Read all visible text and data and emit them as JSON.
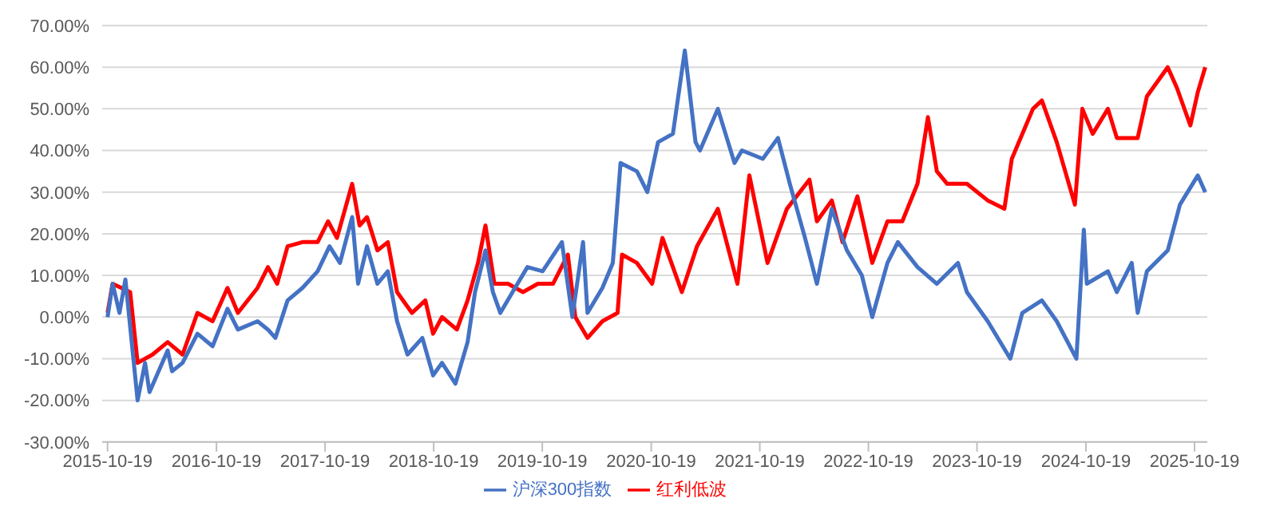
{
  "chart_data": {
    "type": "line",
    "marker": "none",
    "grid": "y",
    "legend": "bottom",
    "xlim": [
      "2015-10-01",
      "2025-12-01"
    ],
    "xticks": [
      "2015-10-19",
      "2016-10-19",
      "2017-10-19",
      "2018-10-19",
      "2019-10-19",
      "2020-10-19",
      "2021-10-19",
      "2022-10-19",
      "2023-10-19",
      "2024-10-19",
      "2025-10-19"
    ],
    "ylim": [
      -30,
      70
    ],
    "yticks": [
      {
        "value": -30,
        "label": "-30.00%"
      },
      {
        "value": -20,
        "label": "-20.00%"
      },
      {
        "value": -10,
        "label": "-10.00%"
      },
      {
        "value": 0,
        "label": "0.00%"
      },
      {
        "value": 10,
        "label": "10.00%"
      },
      {
        "value": 20,
        "label": "20.00%"
      },
      {
        "value": 30,
        "label": "30.00%"
      },
      {
        "value": 40,
        "label": "40.00%"
      },
      {
        "value": 50,
        "label": "50.00%"
      },
      {
        "value": 60,
        "label": "60.00%"
      },
      {
        "value": 70,
        "label": "70.00%"
      }
    ],
    "series": [
      {
        "name": "红利低波",
        "color": "#ff0000",
        "x": [
          "2015-10-19",
          "2015-11-05",
          "2016-01-03",
          "2016-01-28",
          "2016-03-18",
          "2016-05-08",
          "2016-06-27",
          "2016-08-16",
          "2016-10-06",
          "2016-11-25",
          "2016-12-30",
          "2017-03-06",
          "2017-04-10",
          "2017-05-11",
          "2017-06-15",
          "2017-08-04",
          "2017-09-24",
          "2017-10-29",
          "2017-11-28",
          "2018-01-18",
          "2018-02-12",
          "2018-03-09",
          "2018-04-13",
          "2018-05-18",
          "2018-06-18",
          "2018-08-07",
          "2018-09-21",
          "2018-10-17",
          "2018-11-16",
          "2019-01-05",
          "2019-02-10",
          "2019-03-17",
          "2019-04-11",
          "2019-05-11",
          "2019-06-26",
          "2019-08-15",
          "2019-10-04",
          "2019-11-24",
          "2020-01-13",
          "2020-02-07",
          "2020-03-19",
          "2020-05-08",
          "2020-06-28",
          "2020-07-13",
          "2020-09-01",
          "2020-10-22",
          "2020-11-26",
          "2021-01-30",
          "2021-03-22",
          "2021-05-31",
          "2021-08-05",
          "2021-09-14",
          "2021-11-14",
          "2022-01-18",
          "2022-04-04",
          "2022-04-29",
          "2022-06-18",
          "2022-07-24",
          "2022-09-12",
          "2022-11-01",
          "2022-12-22",
          "2023-02-10",
          "2023-04-02",
          "2023-05-07",
          "2023-06-06",
          "2023-07-11",
          "2023-09-15",
          "2023-11-24",
          "2024-01-19",
          "2024-02-13",
          "2024-04-24",
          "2024-05-24",
          "2024-07-13",
          "2024-09-12",
          "2024-10-07",
          "2024-11-11",
          "2025-01-01",
          "2025-01-31",
          "2025-04-11",
          "2025-05-12",
          "2025-07-21",
          "2025-08-21",
          "2025-10-05",
          "2025-10-30",
          "2025-11-24"
        ],
        "values": [
          1,
          8,
          6,
          -11,
          -9,
          -6,
          -9,
          1,
          -1,
          7,
          1,
          7,
          12,
          8,
          17,
          18,
          18,
          23,
          19,
          32,
          22,
          24,
          16,
          18,
          6,
          1,
          4,
          -4,
          0,
          -3,
          4,
          13,
          22,
          8,
          8,
          6,
          8,
          8,
          15,
          0,
          -5,
          -1,
          1,
          15,
          13,
          8,
          19,
          6,
          17,
          26,
          8,
          34,
          13,
          26,
          33,
          23,
          28,
          18,
          29,
          13,
          23,
          23,
          32,
          48,
          35,
          32,
          32,
          28,
          26,
          38,
          50,
          52,
          42,
          27,
          50,
          44,
          50,
          43,
          43,
          53,
          60,
          55,
          46,
          54,
          60
        ]
      },
      {
        "name": "沪深300指数",
        "color": "#4472c4",
        "x": [
          "2015-10-19",
          "2015-11-05",
          "2015-11-28",
          "2015-12-18",
          "2016-01-28",
          "2016-02-22",
          "2016-03-08",
          "2016-05-08",
          "2016-05-23",
          "2016-06-27",
          "2016-08-16",
          "2016-10-06",
          "2016-11-25",
          "2016-12-30",
          "2017-03-06",
          "2017-04-10",
          "2017-05-05",
          "2017-06-15",
          "2017-08-04",
          "2017-09-24",
          "2017-11-03",
          "2017-12-08",
          "2018-01-18",
          "2018-02-07",
          "2018-03-09",
          "2018-04-13",
          "2018-05-18",
          "2018-06-18",
          "2018-07-23",
          "2018-09-11",
          "2018-10-17",
          "2018-11-16",
          "2018-12-31",
          "2019-02-10",
          "2019-03-07",
          "2019-04-11",
          "2019-05-06",
          "2019-05-31",
          "2019-07-11",
          "2019-08-30",
          "2019-10-20",
          "2019-12-24",
          "2020-01-28",
          "2020-03-04",
          "2020-03-19",
          "2020-05-08",
          "2020-06-12",
          "2020-07-08",
          "2020-09-01",
          "2020-10-06",
          "2020-11-11",
          "2020-12-31",
          "2021-02-09",
          "2021-03-17",
          "2021-04-01",
          "2021-05-31",
          "2021-07-26",
          "2021-08-20",
          "2021-10-29",
          "2021-12-19",
          "2022-01-28",
          "2022-03-20",
          "2022-04-29",
          "2022-06-18",
          "2022-08-08",
          "2022-09-27",
          "2022-11-01",
          "2022-12-22",
          "2023-01-26",
          "2023-04-02",
          "2023-06-06",
          "2023-08-16",
          "2023-09-15",
          "2023-11-24",
          "2024-02-08",
          "2024-03-19",
          "2024-05-24",
          "2024-07-13",
          "2024-09-17",
          "2024-10-12",
          "2024-10-22",
          "2025-01-01",
          "2025-01-31",
          "2025-03-22",
          "2025-04-11",
          "2025-05-12",
          "2025-07-21",
          "2025-08-31",
          "2025-10-30",
          "2025-11-24"
        ],
        "values": [
          0,
          8,
          1,
          9,
          -20,
          -11,
          -18,
          -8,
          -13,
          -11,
          -4,
          -7,
          2,
          -3,
          -1,
          -3,
          -5,
          4,
          7,
          11,
          17,
          13,
          24,
          8,
          17,
          8,
          11,
          -1,
          -9,
          -5,
          -14,
          -11,
          -16,
          -6,
          6,
          16,
          6,
          1,
          6,
          12,
          11,
          18,
          0,
          18,
          1,
          7,
          13,
          37,
          35,
          30,
          42,
          44,
          64,
          42,
          40,
          50,
          37,
          40,
          38,
          43,
          32,
          19,
          8,
          26,
          16,
          10,
          0,
          13,
          18,
          12,
          8,
          13,
          6,
          -1,
          -10,
          1,
          4,
          -1,
          -10,
          21,
          8,
          11,
          6,
          13,
          1,
          11,
          16,
          27,
          34,
          30
        ]
      }
    ]
  }
}
